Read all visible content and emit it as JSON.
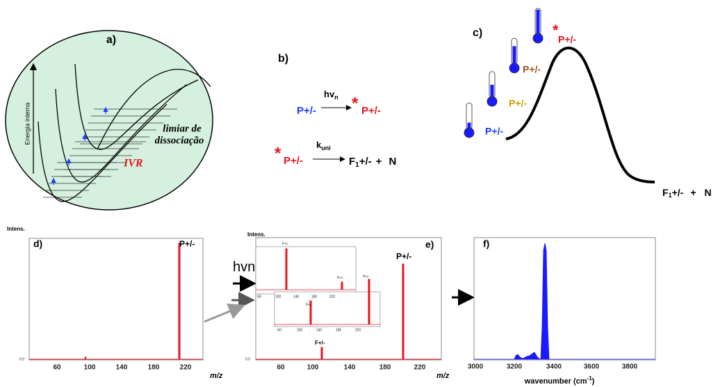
{
  "panel_a": {
    "label": "a)",
    "axis_label": "Energia interna",
    "ivr": "IVR",
    "threshold": [
      "limiar de",
      "dissociação"
    ]
  },
  "panel_b": {
    "label": "b)",
    "reaction_1": {
      "reactant": "P+/-",
      "photon": "hv",
      "photon_sub": "n",
      "star": "*",
      "product": "P+/-"
    },
    "reaction_2": {
      "star": "*",
      "reactant": "P+/-",
      "rate": "k",
      "rate_sub": "uni",
      "fragment": "F",
      "fragment_sub": "1",
      "fragment_charge": "+/-",
      "plus": "+",
      "neutral": "N"
    }
  },
  "panel_c": {
    "label": "c)",
    "ion_labels": [
      "P+/-",
      "P+/-",
      "P+/-",
      "P+/-"
    ],
    "star": "*",
    "fragment": "F",
    "fragment_sub": "1",
    "fragment_charge": "+/-",
    "plus": "+",
    "neutral": "N"
  },
  "panel_d": {
    "y_label": "Intens.",
    "label": "d)",
    "peak_label": "P+/-",
    "y_tick": "0.0",
    "x_ticks": [
      60,
      100,
      140,
      180,
      220
    ],
    "x_label": "m/z"
  },
  "panel_e": {
    "y_label": "Intens.",
    "label": "e)",
    "photon_label": "hvn",
    "peak_label": "P+/-",
    "fragment_label": "F+/-",
    "y_tick": "0.0",
    "x_ticks": [
      60,
      100,
      140,
      180,
      220
    ],
    "x_label": "m/z",
    "inset_1": {
      "fragment_label": "F+/-",
      "parent_label": "P+/-",
      "side_label": "P+/-"
    },
    "inset_2": {
      "fragment_label": "F+/-",
      "parent_label": "P+/-"
    }
  },
  "panel_f": {
    "label": "f)",
    "x_ticks": [
      3000,
      3200,
      3400,
      3600,
      3800
    ],
    "x_label": "wavenumber (cm",
    "x_label_sup": "-1",
    "x_label_end": ")"
  }
}
